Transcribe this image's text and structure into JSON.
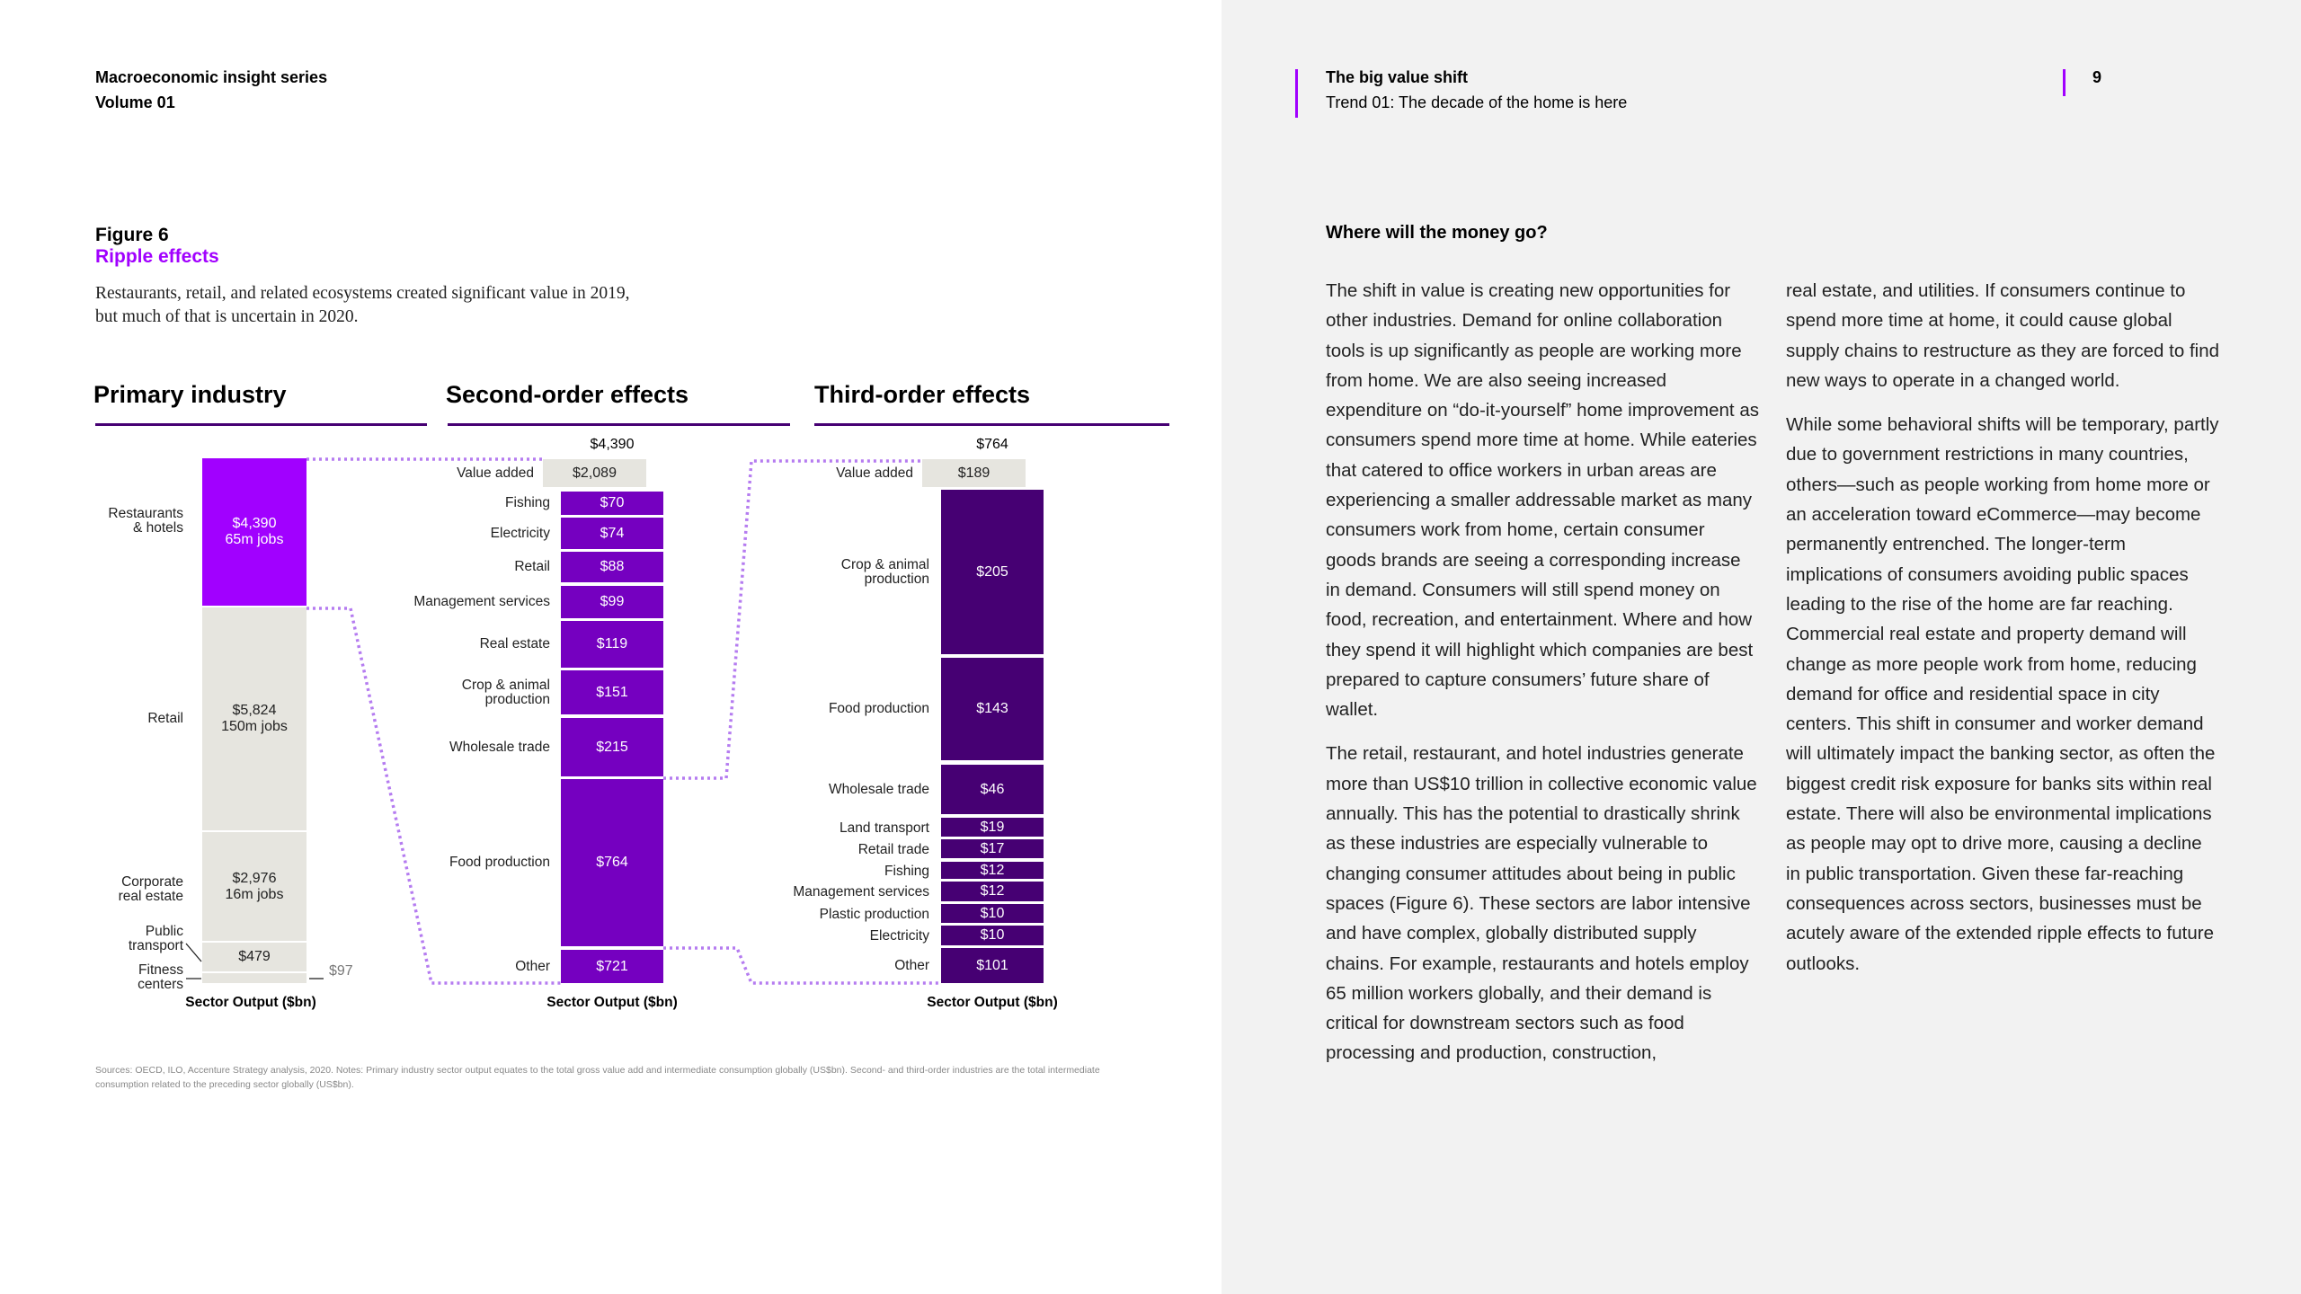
{
  "left_header": {
    "series": "Macroeconomic insight series",
    "volume": "Volume 01"
  },
  "right_header": {
    "title": "The big value shift",
    "subtitle": "Trend 01: The decade of the home is here",
    "page_number": "9"
  },
  "figure": {
    "number": "Figure 6",
    "title": "Ripple effects",
    "description": "Restaurants, retail, and related ecosystems created significant value in 2019, but much of that is uncertain in 2020.",
    "sources": "Sources: OECD, ILO, Accenture Strategy analysis, 2020. Notes: Primary industry sector output equates to the total gross value add and intermediate consumption globally (US$bn). Second- and third-order industries are the total intermediate consumption related to the preceding sector globally (US$bn)."
  },
  "colors": {
    "primary_highlight": "#a100ff",
    "primary_other": "#e6e5df",
    "second": "#7500c0",
    "third": "#460073",
    "connector": "#b57cf0"
  },
  "chart_data": {
    "type": "stacked-bar",
    "unit": "$bn",
    "axis_label": "Sector Output ($bn)",
    "panels": [
      {
        "title": "Primary industry",
        "segments": [
          {
            "label": "Restaurants & hotels",
            "value": "$4,390",
            "jobs": "65m jobs"
          },
          {
            "label": "Retail",
            "value": "$5,824",
            "jobs": "150m jobs"
          },
          {
            "label": "Corporate real estate",
            "value": "$2,976",
            "jobs": "16m jobs"
          },
          {
            "label": "Public transport",
            "value": "$479",
            "jobs": ""
          },
          {
            "label": "Fitness centers",
            "value": "$97",
            "jobs": ""
          }
        ]
      },
      {
        "title": "Second-order effects",
        "total": "$4,390",
        "value_added_label": "Value added",
        "value_added": "$2,089",
        "segments": [
          {
            "label": "Fishing",
            "value": "$70"
          },
          {
            "label": "Electricity",
            "value": "$74"
          },
          {
            "label": "Retail",
            "value": "$88"
          },
          {
            "label": "Management services",
            "value": "$99"
          },
          {
            "label": "Real estate",
            "value": "$119"
          },
          {
            "label": "Crop & animal production",
            "value": "$151"
          },
          {
            "label": "Wholesale trade",
            "value": "$215"
          },
          {
            "label": "Food production",
            "value": "$764"
          },
          {
            "label": "Other",
            "value": "$721"
          }
        ]
      },
      {
        "title": "Third-order effects",
        "total": "$764",
        "value_added_label": "Value added",
        "value_added": "$189",
        "segments": [
          {
            "label": "Crop & animal production",
            "value": "$205"
          },
          {
            "label": "Food production",
            "value": "$143"
          },
          {
            "label": "Wholesale trade",
            "value": "$46"
          },
          {
            "label": "Land transport",
            "value": "$19"
          },
          {
            "label": "Retail trade",
            "value": "$17"
          },
          {
            "label": "Fishing",
            "value": "$12"
          },
          {
            "label": "Management services",
            "value": "$12"
          },
          {
            "label": "Plastic production",
            "value": "$10"
          },
          {
            "label": "Electricity",
            "value": "$10"
          },
          {
            "label": "Other",
            "value": "$101"
          }
        ]
      }
    ]
  },
  "article": {
    "heading": "Where will the money go?",
    "col1": [
      "The shift in value is creating new opportunities for other industries. Demand for online collaboration tools is up significantly as people are working more from home. We are also seeing increased expenditure on “do-it-yourself” home improvement as consumers spend more time at home. While eateries that catered to office workers in urban areas are experiencing a smaller addressable market as many consumers work from home, certain consumer goods brands are seeing a corresponding increase in demand. Consumers will still spend money on food, recreation, and entertainment. Where and how they spend it will highlight which companies are best prepared to capture consumers’ future share of wallet.",
      "The retail, restaurant, and hotel industries generate more than US$10 trillion in collective economic value annually. This has the potential to drastically shrink as these industries are especially vulnerable to changing consumer attitudes about being in public spaces (Figure 6). These sectors are labor intensive and have complex, globally distributed supply chains. For example, restaurants and hotels employ 65 million workers globally, and their demand is critical for downstream sectors such as food processing and production, construction,"
    ],
    "col2": [
      "real estate, and utilities. If consumers continue to spend more time at home, it could cause global supply chains to restructure as they are forced to find new ways to operate in a changed world.",
      "While some behavioral shifts will be temporary, partly due to government restrictions in many countries, others—such as people working from home more or an acceleration toward eCommerce—may become permanently entrenched. The longer-term implications of consumers avoiding public spaces leading to the rise of the home are far reaching. Commercial real estate and property demand will change as more people work from home, reducing demand for office and residential space in city centers. This shift in consumer and worker demand will ultimately impact the banking sector, as often the biggest credit risk exposure for banks sits within real estate. There will also be environmental implications as people may opt to drive more, causing a decline in public transportation. Given these far-reaching consequences across sectors, businesses must be acutely aware of the extended ripple effects to future outlooks."
    ]
  }
}
